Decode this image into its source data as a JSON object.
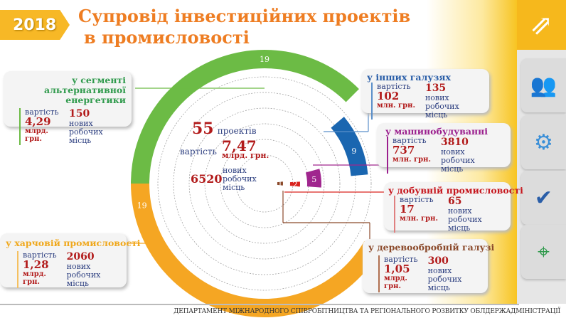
{
  "header": {
    "year": "2018",
    "title_line1": "Супровід інвестиційних проектів",
    "title_line2": "в промисловості"
  },
  "summary": {
    "projects": "55",
    "projects_label": "проектів",
    "cost_label": "вартість",
    "cost": "7,47",
    "cost_unit": "млрд. грн.",
    "jobs": "6520",
    "jobs_label": "нових робочих місць"
  },
  "chart_data": {
    "type": "radial-bar",
    "categories": [
      "у сегменті альтернативної енергетики",
      "у іншіх галузях",
      "у машинобудуванні",
      "у добувній промисловості",
      "у деревообробній галузі",
      "у харчовій промисловості"
    ],
    "values": [
      19,
      9,
      5,
      2,
      1,
      19
    ],
    "colors": [
      "#6cbb45",
      "#1a66b0",
      "#a0268e",
      "#d9241f",
      "#8b4a2b",
      "#f5a623"
    ]
  },
  "sectors": [
    {
      "title": "у сегменті альтернативної енергетики",
      "cost_label": "вартість",
      "cost": "4,29",
      "unit": "млрд. грн.",
      "jobs": "150",
      "jobs_label": "нових робочих місць",
      "color": "#2f9a4c"
    },
    {
      "title": "у інших галузях",
      "cost_label": "вартість",
      "cost": "102",
      "unit": "млн. грн.",
      "jobs": "135",
      "jobs_label": "нових робочих місць",
      "color": "#2a5ea8"
    },
    {
      "title": "у машинобудуванні",
      "cost_label": "вартість",
      "cost": "737",
      "unit": "млн. грн.",
      "jobs": "3810",
      "jobs_label": "нових робочих місць",
      "color": "#9b1f8e"
    },
    {
      "title": "у добувній промисловості",
      "cost_label": "вартість",
      "cost": "17",
      "unit": "млн. грн.",
      "jobs": "65",
      "jobs_label": "нових робочих місць",
      "color": "#c6161d"
    },
    {
      "title": "у деревообробній галузі",
      "cost_label": "вартість",
      "cost": "1,05",
      "unit": "млрд. грн.",
      "jobs": "300",
      "jobs_label": "нових робочих місць",
      "color": "#8b4a2b"
    },
    {
      "title": "у харчовій промисловості",
      "cost_label": "вартість",
      "cost": "1,28",
      "unit": "млрд. грн.",
      "jobs": "2060",
      "jobs_label": "нових робочих місць",
      "color": "#f0a81c"
    }
  ],
  "sidebar": {
    "icons": [
      "growth-chart-icon",
      "global-team-icon",
      "team-gear-icon",
      "meeting-icon",
      "map-pin-icon"
    ]
  },
  "footer": "ДЕПАРТАМЕНТ МІЖНАРОДНОГО СПІВРОБІТНИЦТВА ТА РЕГІОНАЛЬНОГО РОЗВИТКУ ОБЛДЕРЖАДМІНІСТРАЦІЇ"
}
